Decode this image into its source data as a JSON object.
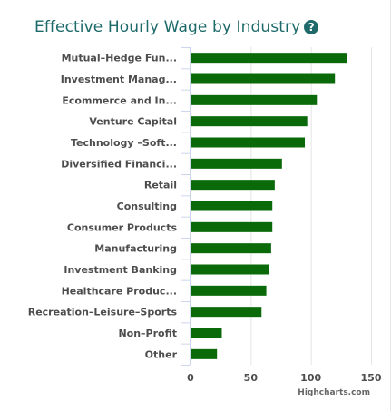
{
  "title": "Effective Hourly Wage by Industry",
  "help_icon": "question-circle-icon",
  "credits": "Highcharts.com",
  "colors": {
    "bar": "#0a6a0a",
    "title": "#1e6a6a",
    "grid": "#e6e6e6"
  },
  "chart_data": {
    "type": "bar",
    "orientation": "horizontal",
    "title": "Effective Hourly Wage by Industry",
    "categories": [
      "Mutual–Hedge Fun...",
      "Investment Manag...",
      "Ecommerce and In...",
      "Venture Capital",
      "Technology –Soft...",
      "Diversified Financi...",
      "Retail",
      "Consulting",
      "Consumer Products",
      "Manufacturing",
      "Investment Banking",
      "Healthcare Produc...",
      "Recreation–Leisure–Sports",
      "Non–Profit",
      "Other"
    ],
    "values": [
      130,
      120,
      105,
      97,
      95,
      76,
      70,
      68,
      68,
      67,
      65,
      63,
      59,
      26,
      22
    ],
    "xticks": [
      0,
      50,
      100,
      150
    ],
    "xlim": [
      0,
      150
    ],
    "grid": true,
    "legend": false
  }
}
